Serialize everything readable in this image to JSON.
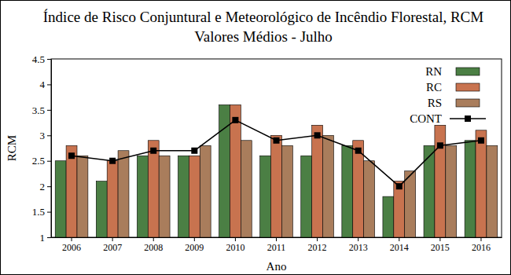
{
  "chart_data": {
    "type": "bar",
    "title": "Índice de Risco Conjuntural e Meteorológico de Incêndio Florestal,  RCM",
    "subtitle": "Valores Médios - Julho",
    "x_label": "Ano",
    "y_label": "RCM",
    "categories": [
      "2006",
      "2007",
      "2008",
      "2009",
      "2010",
      "2011",
      "2012",
      "2013",
      "2014",
      "2015",
      "2016"
    ],
    "series": [
      {
        "name": "RN",
        "type": "bar",
        "color": "#4b7f44",
        "values": [
          2.5,
          2.1,
          2.6,
          2.6,
          3.6,
          2.6,
          2.6,
          2.8,
          1.8,
          2.8,
          2.9
        ]
      },
      {
        "name": "RC",
        "type": "bar",
        "color": "#c8734f",
        "values": [
          2.8,
          2.5,
          2.9,
          2.6,
          3.6,
          3.0,
          3.2,
          2.9,
          2.1,
          3.2,
          3.1
        ]
      },
      {
        "name": "RS",
        "type": "bar",
        "color": "#a97d5c",
        "values": [
          2.6,
          2.7,
          2.6,
          2.8,
          2.9,
          2.8,
          3.0,
          2.5,
          2.3,
          2.8,
          2.8
        ]
      },
      {
        "name": "CONT",
        "type": "line",
        "color": "#000000",
        "marker": "square",
        "line_style": "solid",
        "values": [
          2.6,
          2.5,
          2.7,
          2.7,
          3.3,
          2.9,
          3.0,
          2.7,
          2.0,
          2.8,
          2.9
        ]
      }
    ],
    "ylim": [
      1,
      4.5
    ],
    "yticks": [
      1,
      1.5,
      2,
      2.5,
      3,
      3.5,
      4,
      4.5
    ],
    "grid": false,
    "legend": "upper right"
  }
}
